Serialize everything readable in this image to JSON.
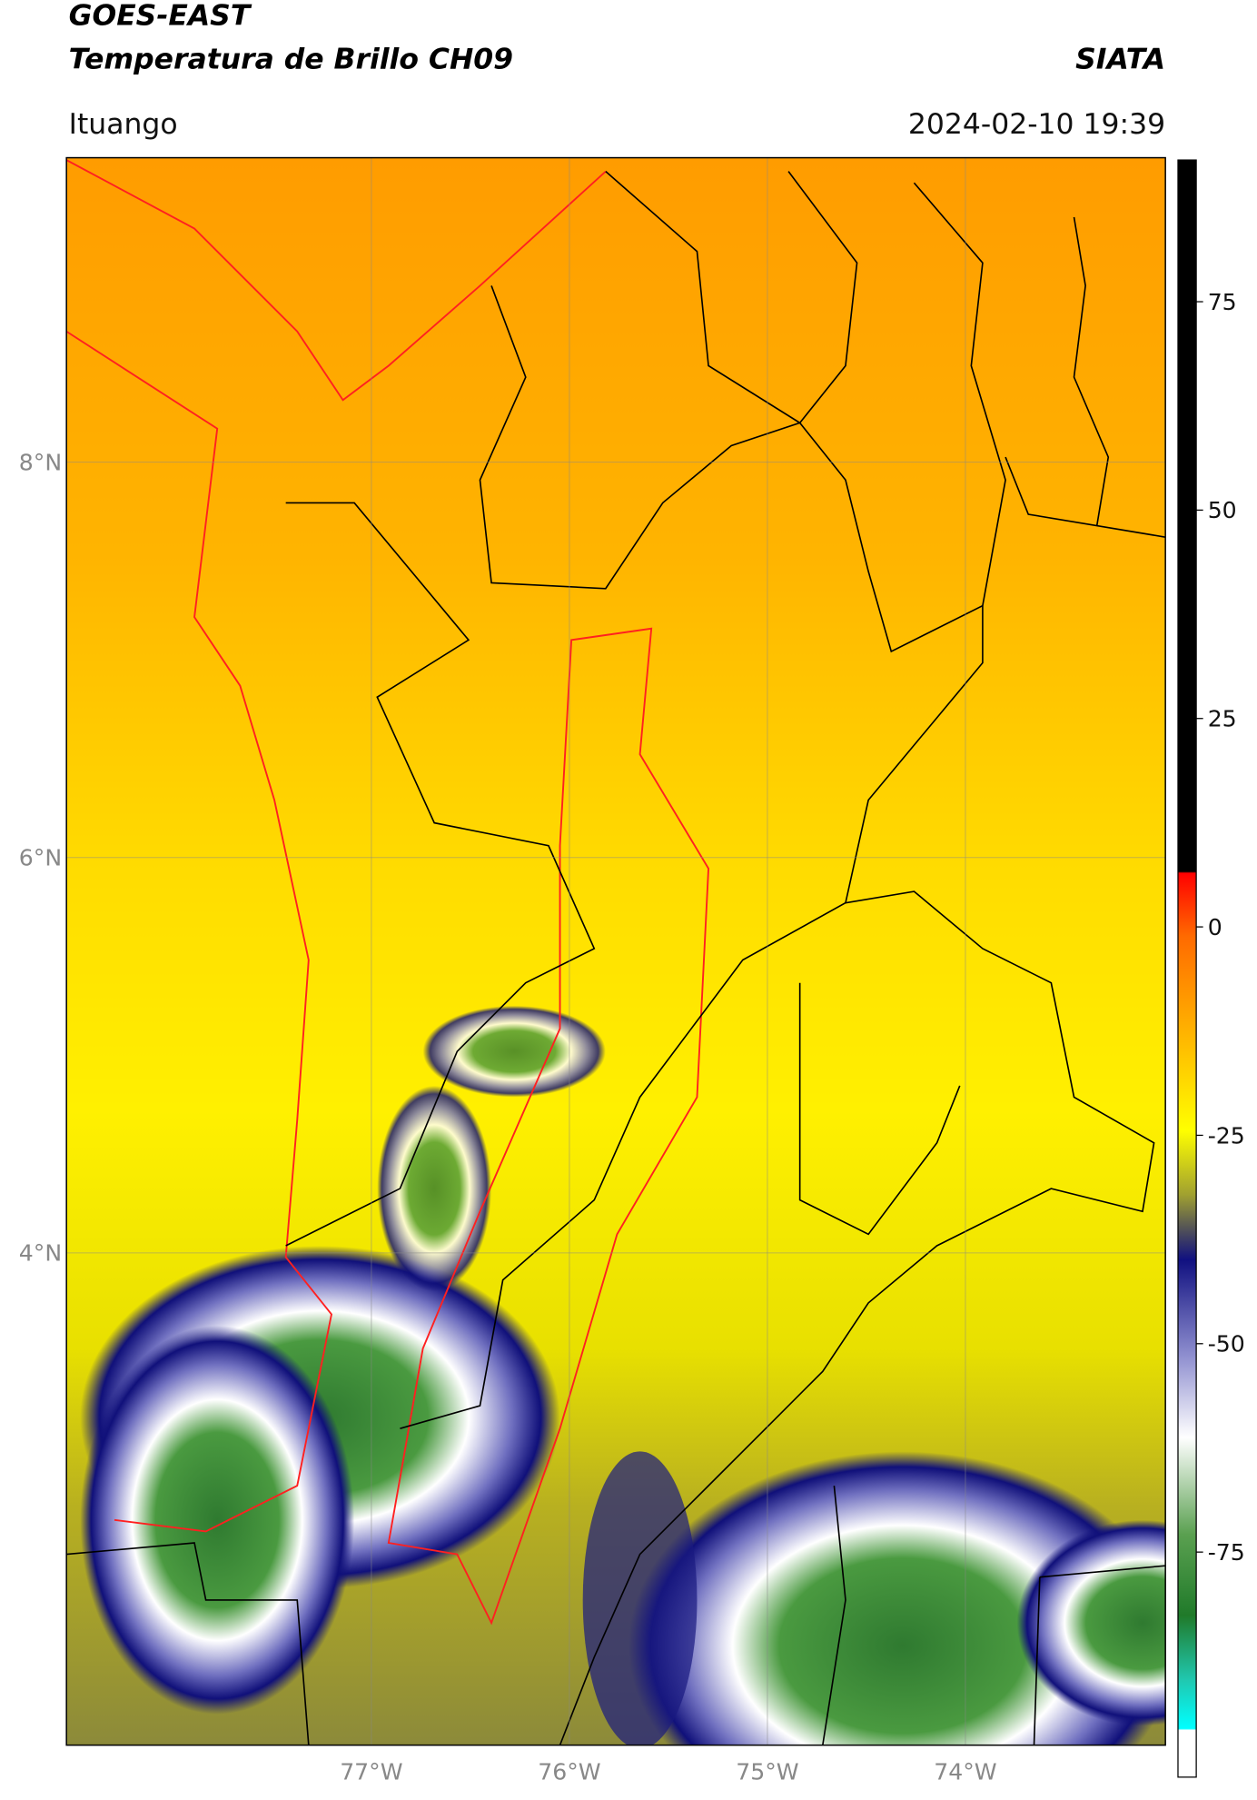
{
  "header": {
    "title": "GOES-EAST",
    "subtitle": "Temperatura de Brillo CH09",
    "organization": "SIATA",
    "location": "Ituango",
    "datetime": "2024-02-10 19:39"
  },
  "map": {
    "xlim": [
      -78.54,
      -72.99
    ],
    "ylim": [
      1.51,
      9.54
    ],
    "xticks": [
      {
        "value": -77,
        "label": "77°W"
      },
      {
        "value": -76,
        "label": "76°W"
      },
      {
        "value": -75,
        "label": "75°W"
      },
      {
        "value": -74,
        "label": "74°W"
      }
    ],
    "yticks": [
      {
        "value": 8,
        "label": "8°N"
      },
      {
        "value": 6,
        "label": "6°N"
      },
      {
        "value": 4,
        "label": "4°N"
      }
    ],
    "grid": true
  },
  "colorbar": {
    "lim": [
      -102,
      92
    ],
    "ticks": [
      75,
      50,
      25,
      0,
      -25,
      -50,
      -75
    ]
  }
}
